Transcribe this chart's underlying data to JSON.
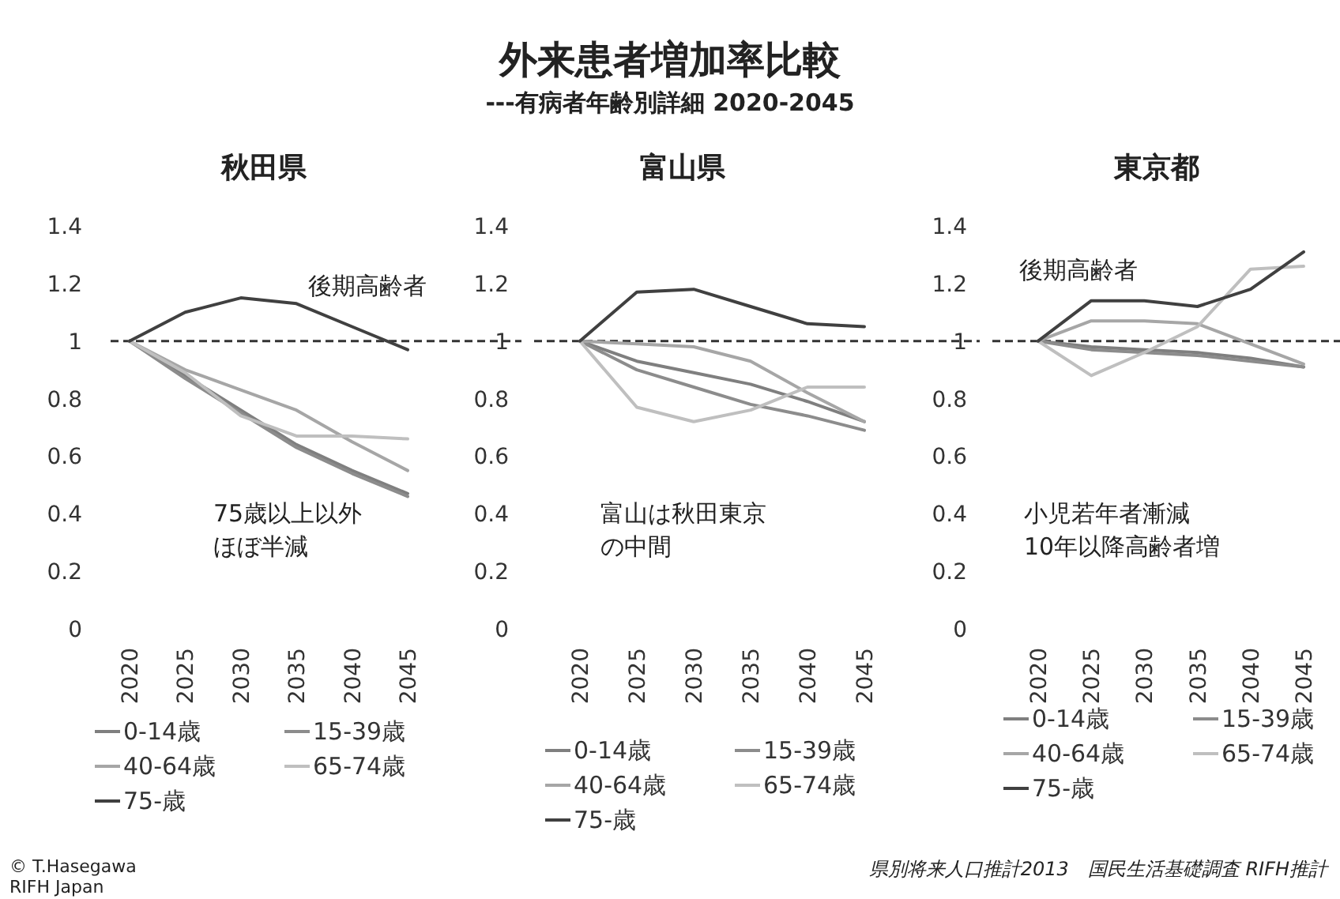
{
  "chart_data": [
    {
      "type": "line",
      "title": "秋田県",
      "categories": [
        "2020",
        "2025",
        "2030",
        "2035",
        "2040",
        "2045"
      ],
      "ylim": [
        0,
        1.4
      ],
      "yticks": [
        0,
        0.2,
        0.4,
        0.6,
        0.8,
        1,
        1.2,
        1.4
      ],
      "grid": false,
      "legend": "bottom",
      "marker": "none",
      "line_style": "solid",
      "ref_lines": [
        {
          "axis": "y",
          "value": 1,
          "color": "#333333",
          "line_style": "dashed"
        }
      ],
      "annotations": [
        "外来患者増加率比較",
        "---有病者年齢別詳細 2020-2045",
        "後期高齢者",
        "75歳以上以外",
        "ほぼ半減",
        "© T.Hasegawa\nRIFH Japan"
      ],
      "series": [
        {
          "name": "0-14歳",
          "color": "#7f7f7f",
          "values": [
            1,
            0.88,
            0.76,
            0.64,
            0.55,
            0.47
          ]
        },
        {
          "name": "15-39歳",
          "color": "#8c8c8c",
          "values": [
            1,
            0.87,
            0.75,
            0.63,
            0.54,
            0.46
          ]
        },
        {
          "name": "40-64歳",
          "color": "#a6a6a6",
          "values": [
            1,
            0.9,
            0.83,
            0.76,
            0.65,
            0.55
          ]
        },
        {
          "name": "65-74歳",
          "color": "#bfbfbf",
          "values": [
            1,
            0.89,
            0.74,
            0.67,
            0.67,
            0.66
          ]
        },
        {
          "name": "75-歳",
          "color": "#404040",
          "values": [
            1,
            1.1,
            1.15,
            1.13,
            1.05,
            0.97
          ]
        }
      ]
    },
    {
      "type": "line",
      "title": "富山県",
      "categories": [
        "2020",
        "2025",
        "2030",
        "2035",
        "2040",
        "2045"
      ],
      "ylim": [
        0,
        1.4
      ],
      "yticks": [
        0,
        0.2,
        0.4,
        0.6,
        0.8,
        1,
        1.2,
        1.4
      ],
      "grid": false,
      "legend": "bottom",
      "marker": "none",
      "line_style": "solid",
      "ref_lines": [
        {
          "axis": "y",
          "value": 1,
          "color": "#333333",
          "line_style": "dashed"
        }
      ],
      "annotations": [
        "富山は秋田東京",
        "の中間"
      ],
      "series": [
        {
          "name": "0-14歳",
          "color": "#7f7f7f",
          "values": [
            1,
            0.93,
            0.89,
            0.85,
            0.79,
            0.72
          ]
        },
        {
          "name": "15-39歳",
          "color": "#8c8c8c",
          "values": [
            1,
            0.9,
            0.84,
            0.78,
            0.74,
            0.69
          ]
        },
        {
          "name": "40-64歳",
          "color": "#a6a6a6",
          "values": [
            1,
            0.99,
            0.98,
            0.93,
            0.82,
            0.72
          ]
        },
        {
          "name": "65-74歳",
          "color": "#bfbfbf",
          "values": [
            1,
            0.77,
            0.72,
            0.76,
            0.84,
            0.84
          ]
        },
        {
          "name": "75-歳",
          "color": "#404040",
          "values": [
            1,
            1.17,
            1.18,
            1.12,
            1.06,
            1.05
          ]
        }
      ]
    },
    {
      "type": "line",
      "title": "東京都",
      "categories": [
        "2020",
        "2025",
        "2030",
        "2035",
        "2040",
        "2045"
      ],
      "ylim": [
        0,
        1.4
      ],
      "yticks": [
        0,
        0.2,
        0.4,
        0.6,
        0.8,
        1,
        1.2,
        1.4
      ],
      "grid": false,
      "legend": "bottom",
      "marker": "none",
      "line_style": "solid",
      "ref_lines": [
        {
          "axis": "y",
          "value": 1,
          "color": "#333333",
          "line_style": "dashed"
        }
      ],
      "annotations": [
        "後期高齢者",
        "小児若年者漸減",
        "10年以降高齢者増",
        "県別将来人口推計2013　国民生活基礎調査 RIFH推計"
      ],
      "series": [
        {
          "name": "0-14歳",
          "color": "#7f7f7f",
          "values": [
            1,
            0.98,
            0.97,
            0.96,
            0.94,
            0.91
          ]
        },
        {
          "name": "15-39歳",
          "color": "#8c8c8c",
          "values": [
            1,
            0.97,
            0.96,
            0.95,
            0.93,
            0.91
          ]
        },
        {
          "name": "40-64歳",
          "color": "#a6a6a6",
          "values": [
            1,
            1.07,
            1.07,
            1.06,
            0.99,
            0.92
          ]
        },
        {
          "name": "65-74歳",
          "color": "#bfbfbf",
          "values": [
            1,
            0.88,
            0.96,
            1.05,
            1.25,
            1.26
          ]
        },
        {
          "name": "75-歳",
          "color": "#404040",
          "values": [
            1,
            1.14,
            1.14,
            1.12,
            1.18,
            1.31
          ]
        }
      ]
    }
  ]
}
